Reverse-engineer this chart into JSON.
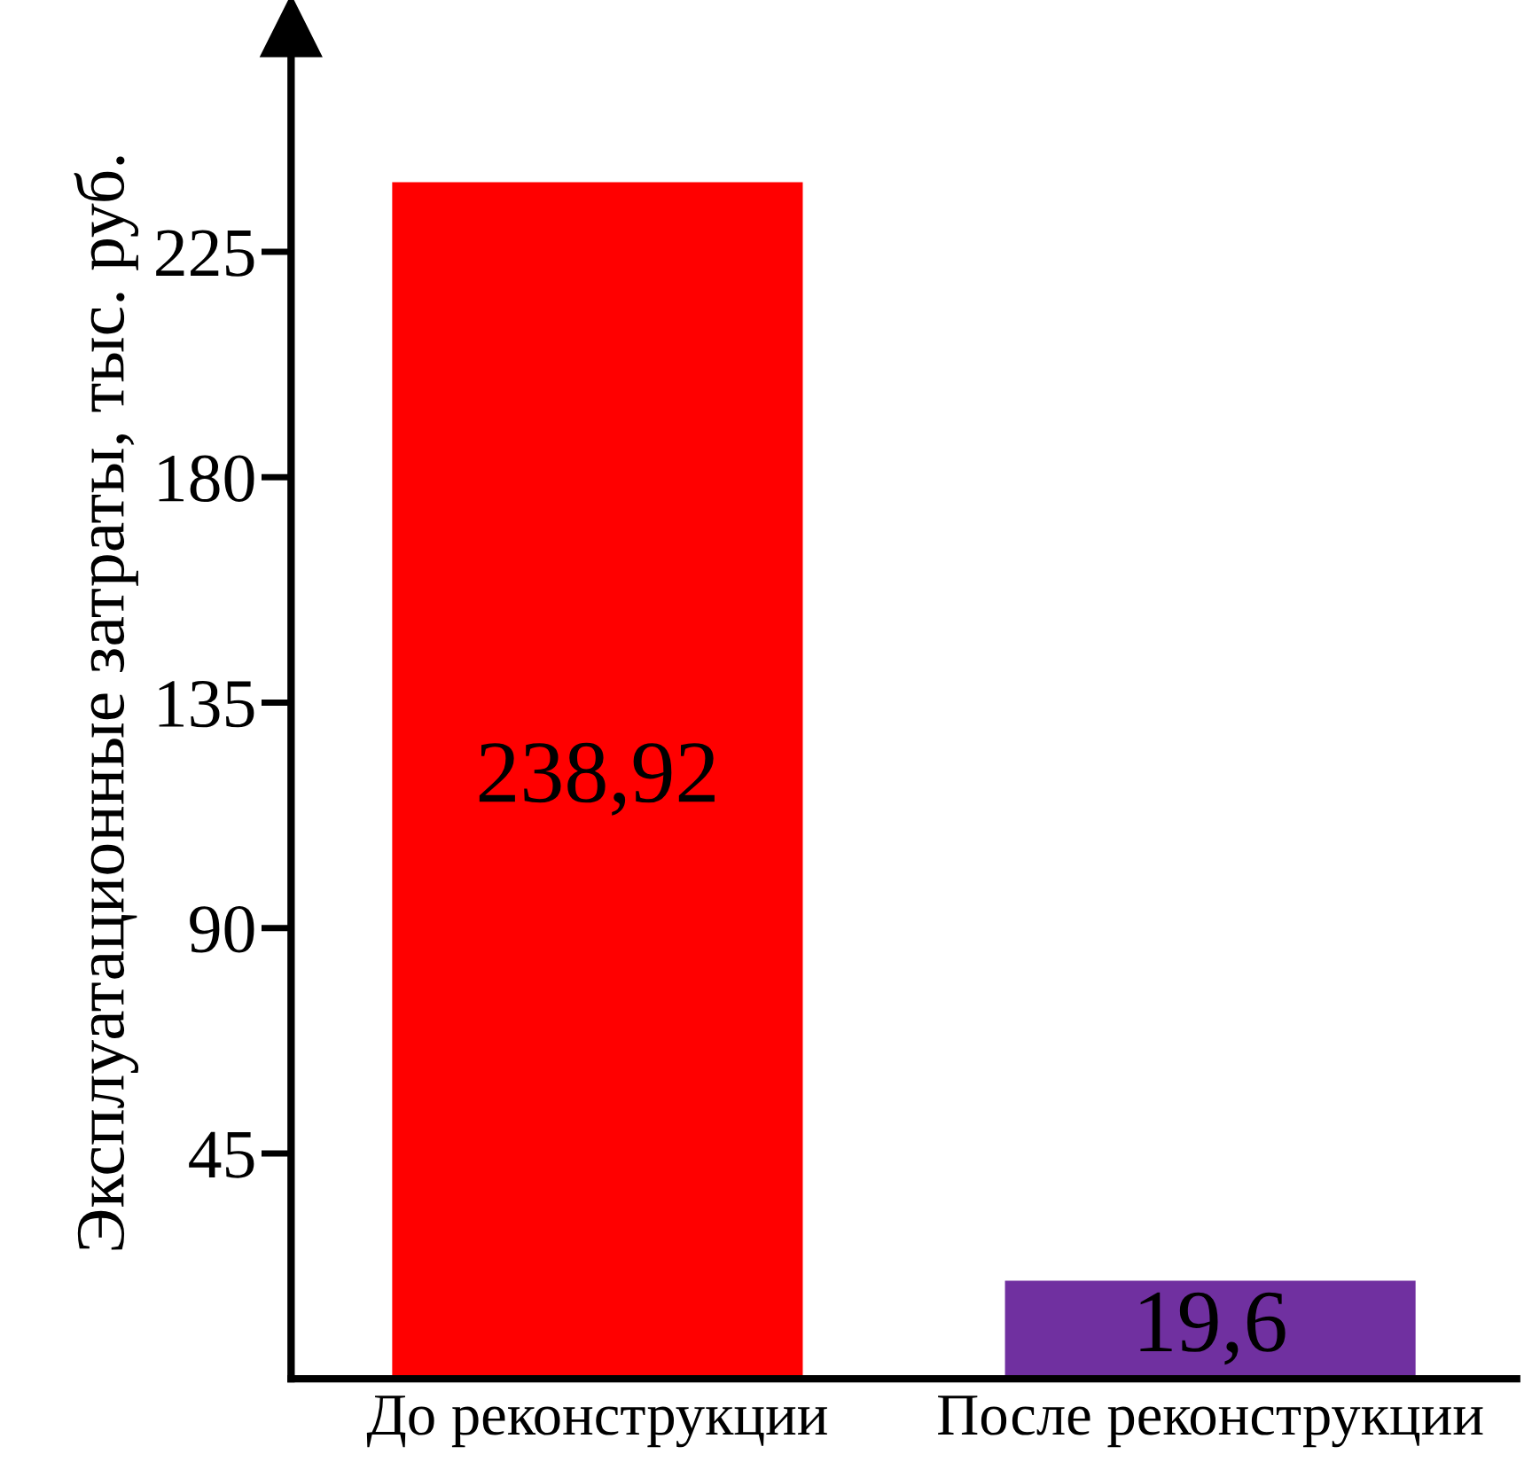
{
  "chart_data": {
    "type": "bar",
    "ylabel": "Эксплуатационные затраты, тыс. руб.",
    "categories": [
      "До реконструкции",
      "После реконструкции"
    ],
    "values": [
      238.92,
      19.6
    ],
    "colors": [
      "#ff0000",
      "#7030a0"
    ],
    "value_labels": [
      "238,92",
      "19,6"
    ],
    "ylim": [
      0,
      270
    ],
    "yticks": [
      45,
      90,
      135,
      180,
      225
    ],
    "grid": false,
    "legend": false
  }
}
